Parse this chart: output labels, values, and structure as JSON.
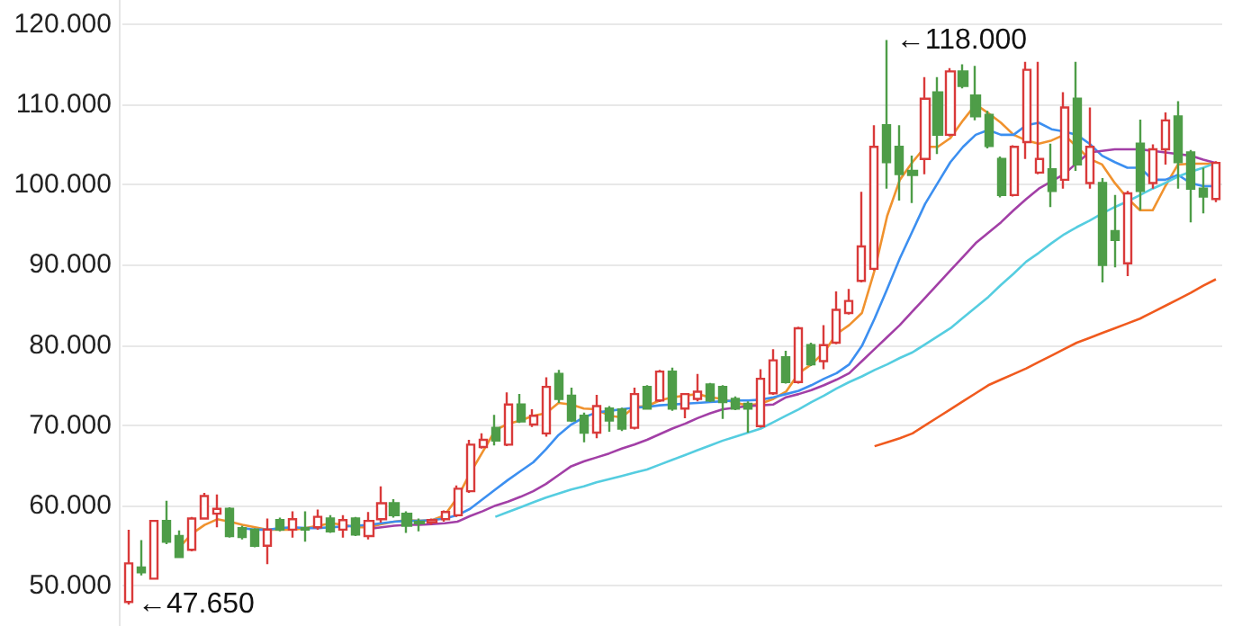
{
  "chart_data": {
    "type": "candlestick",
    "categories": [
      null,
      null,
      null,
      null,
      null,
      null,
      null,
      null,
      null,
      null,
      null,
      null,
      null,
      null,
      null,
      null,
      null,
      null,
      null,
      null,
      null,
      null,
      null,
      null,
      null,
      null,
      null,
      null,
      null,
      null,
      null,
      null,
      null,
      null,
      null,
      null,
      null,
      null,
      null,
      null,
      null,
      null,
      null,
      null,
      null,
      null,
      null,
      null,
      null,
      null,
      null,
      null,
      null,
      null,
      null,
      null,
      null,
      null,
      null,
      null,
      null,
      null,
      null,
      null,
      null,
      null,
      null,
      null,
      null,
      null,
      null,
      null,
      null,
      null,
      null,
      null,
      null,
      null,
      null,
      null,
      null,
      null,
      null,
      null,
      null,
      null,
      null
    ],
    "ohlc": [
      [
        48.0,
        57.0,
        47.65,
        52.8
      ],
      [
        52.3,
        55.7,
        51.3,
        51.7
      ],
      [
        50.9,
        58.2,
        50.8,
        58.1
      ],
      [
        58.1,
        60.6,
        55.2,
        55.5
      ],
      [
        56.2,
        56.9,
        53.5,
        53.6
      ],
      [
        54.5,
        58.6,
        54.3,
        58.4
      ],
      [
        58.4,
        61.6,
        58.3,
        61.2
      ],
      [
        59.0,
        61.4,
        57.3,
        59.6
      ],
      [
        59.6,
        59.8,
        56.0,
        56.2
      ],
      [
        57.2,
        57.5,
        55.8,
        56.1
      ],
      [
        57.0,
        57.2,
        54.8,
        55.0
      ],
      [
        55.0,
        58.4,
        52.7,
        57.0
      ],
      [
        58.2,
        58.5,
        56.8,
        57.0
      ],
      [
        57.0,
        59.3,
        56.0,
        58.3
      ],
      [
        57.2,
        59.3,
        55.5,
        57.0
      ],
      [
        57.3,
        59.5,
        57.0,
        58.6
      ],
      [
        58.4,
        58.8,
        56.6,
        56.8
      ],
      [
        57.0,
        58.8,
        56.0,
        58.2
      ],
      [
        58.4,
        58.6,
        56.2,
        56.4
      ],
      [
        56.2,
        59.2,
        55.8,
        58.1
      ],
      [
        58.3,
        62.4,
        57.9,
        60.3
      ],
      [
        60.3,
        60.8,
        58.5,
        58.8
      ],
      [
        59.0,
        59.3,
        56.6,
        57.5
      ],
      [
        58.0,
        58.4,
        56.8,
        57.8
      ],
      [
        57.9,
        58.4,
        57.6,
        58.2
      ],
      [
        58.3,
        59.4,
        58.0,
        59.2
      ],
      [
        58.8,
        62.5,
        58.6,
        62.1
      ],
      [
        61.8,
        68.2,
        61.6,
        67.6
      ],
      [
        67.3,
        69.0,
        67.1,
        68.2
      ],
      [
        69.7,
        71.3,
        67.5,
        68.1
      ],
      [
        67.6,
        74.1,
        67.4,
        72.6
      ],
      [
        72.6,
        73.9,
        70.3,
        70.5
      ],
      [
        70.1,
        72.0,
        69.8,
        71.2
      ],
      [
        69.0,
        76.0,
        68.6,
        74.8
      ],
      [
        76.4,
        76.9,
        72.8,
        73.3
      ],
      [
        73.7,
        74.7,
        70.4,
        70.6
      ],
      [
        71.2,
        71.6,
        67.9,
        69.1
      ],
      [
        69.1,
        73.8,
        68.4,
        72.4
      ],
      [
        72.1,
        72.4,
        69.2,
        70.6
      ],
      [
        72.0,
        72.2,
        69.3,
        69.6
      ],
      [
        69.7,
        74.7,
        69.5,
        73.9
      ],
      [
        74.8,
        75.0,
        72.0,
        72.1
      ],
      [
        73.1,
        76.9,
        72.9,
        76.7
      ],
      [
        76.7,
        77.2,
        71.8,
        72.1
      ],
      [
        72.1,
        74.0,
        70.9,
        73.9
      ],
      [
        73.3,
        76.4,
        73.0,
        74.2
      ],
      [
        75.1,
        75.3,
        72.9,
        73.1
      ],
      [
        74.8,
        75.0,
        70.8,
        72.9
      ],
      [
        73.3,
        73.6,
        71.9,
        72.1
      ],
      [
        72.7,
        73.0,
        69.1,
        72.1
      ],
      [
        69.9,
        77.0,
        69.7,
        75.8
      ],
      [
        74.0,
        79.5,
        73.8,
        78.1
      ],
      [
        78.5,
        79.3,
        75.2,
        75.4
      ],
      [
        75.4,
        82.3,
        75.2,
        82.1
      ],
      [
        80.0,
        80.3,
        77.4,
        77.6
      ],
      [
        78.0,
        82.5,
        77.0,
        80.0
      ],
      [
        80.3,
        86.7,
        80.1,
        84.4
      ],
      [
        84.0,
        87.0,
        83.8,
        85.5
      ],
      [
        88.0,
        99.1,
        87.8,
        92.3
      ],
      [
        89.5,
        107.4,
        89.3,
        104.7
      ],
      [
        107.4,
        118.0,
        99.5,
        102.8
      ],
      [
        104.7,
        107.4,
        98.0,
        101.3
      ],
      [
        101.7,
        103.6,
        97.7,
        101.2
      ],
      [
        103.2,
        113.4,
        101.3,
        110.7
      ],
      [
        111.5,
        113.4,
        103.8,
        106.2
      ],
      [
        106.2,
        114.5,
        106.0,
        114.1
      ],
      [
        114.1,
        115.0,
        112.0,
        112.3
      ],
      [
        111.1,
        114.8,
        108.0,
        108.5
      ],
      [
        108.7,
        109.2,
        104.5,
        104.8
      ],
      [
        103.2,
        103.5,
        98.4,
        98.7
      ],
      [
        98.7,
        104.9,
        98.5,
        104.7
      ],
      [
        105.3,
        115.3,
        103.2,
        114.3
      ],
      [
        101.5,
        115.3,
        101.3,
        103.2
      ],
      [
        101.9,
        105.1,
        97.2,
        99.2
      ],
      [
        100.6,
        111.5,
        99.5,
        109.6
      ],
      [
        110.7,
        115.3,
        101.7,
        102.5
      ],
      [
        100.2,
        109.6,
        99.5,
        104.7
      ],
      [
        100.2,
        100.8,
        87.8,
        90.0
      ],
      [
        94.2,
        98.7,
        89.7,
        93.1
      ],
      [
        90.2,
        99.2,
        88.6,
        98.9
      ],
      [
        105.1,
        108.1,
        96.8,
        99.2
      ],
      [
        100.2,
        105.0,
        99.5,
        104.4
      ],
      [
        104.4,
        109.0,
        102.5,
        108.0
      ],
      [
        108.5,
        110.4,
        99.5,
        102.8
      ],
      [
        104.0,
        104.3,
        95.3,
        99.5
      ],
      [
        99.5,
        102.1,
        96.4,
        98.5
      ],
      [
        98.2,
        102.9,
        97.8,
        102.7
      ]
    ],
    "colors": [
      "#d93a3a",
      "#4e9d48",
      "#d93a3a",
      "#4e9d48",
      "#4e9d48",
      "#d93a3a",
      "#d93a3a",
      "#d93a3a",
      "#4e9d48",
      "#4e9d48",
      "#4e9d48",
      "#d93a3a",
      "#4e9d48",
      "#d93a3a",
      "#4e9d48",
      "#d93a3a",
      "#4e9d48",
      "#d93a3a",
      "#4e9d48",
      "#d93a3a",
      "#d93a3a",
      "#4e9d48",
      "#4e9d48",
      "#4e9d48",
      "#d93a3a",
      "#d93a3a",
      "#d93a3a",
      "#d93a3a",
      "#d93a3a",
      "#4e9d48",
      "#d93a3a",
      "#4e9d48",
      "#d93a3a",
      "#d93a3a",
      "#4e9d48",
      "#4e9d48",
      "#4e9d48",
      "#d93a3a",
      "#4e9d48",
      "#4e9d48",
      "#d93a3a",
      "#4e9d48",
      "#d93a3a",
      "#4e9d48",
      "#d93a3a",
      "#d93a3a",
      "#4e9d48",
      "#4e9d48",
      "#4e9d48",
      "#4e9d48",
      "#d93a3a",
      "#d93a3a",
      "#4e9d48",
      "#d93a3a",
      "#4e9d48",
      "#d93a3a",
      "#d93a3a",
      "#d93a3a",
      "#d93a3a",
      "#d93a3a",
      "#4e9d48",
      "#4e9d48",
      "#4e9d48",
      "#d93a3a",
      "#4e9d48",
      "#d93a3a",
      "#4e9d48",
      "#4e9d48",
      "#4e9d48",
      "#4e9d48",
      "#d93a3a",
      "#d93a3a",
      "#d93a3a",
      "#4e9d48",
      "#d93a3a",
      "#4e9d48",
      "#d93a3a",
      "#4e9d48",
      "#4e9d48",
      "#d93a3a",
      "#4e9d48",
      "#d93a3a",
      "#d93a3a",
      "#4e9d48",
      "#4e9d48",
      "#4e9d48",
      "#d93a3a"
    ],
    "series": [
      {
        "type": "line",
        "color": "#f0922e",
        "values": [
          null,
          null,
          null,
          null,
          54.8,
          56.5,
          57.6,
          58.3,
          58.0,
          57.6,
          57.3,
          57.0,
          57.0,
          57.0,
          57.2,
          57.5,
          57.8,
          57.6,
          57.3,
          57.3,
          57.7,
          58.0,
          58.2,
          58.1,
          58.2,
          58.8,
          61.0,
          64.0,
          66.7,
          69.4,
          70.2,
          70.6,
          71.2,
          71.5,
          72.8,
          72.6,
          72.1,
          72.0,
          71.2,
          71.0,
          72.3,
          72.4,
          73.1,
          73.5,
          73.7,
          73.9,
          73.5,
          73.3,
          72.8,
          72.5,
          72.7,
          73.3,
          74.2,
          76.5,
          77.6,
          79.1,
          81.4,
          82.5,
          84.0,
          89.3,
          96.1,
          100.6,
          102.8,
          104.7,
          104.7,
          105.8,
          108.0,
          110.0,
          108.9,
          107.7,
          106.2,
          105.5,
          105.1,
          105.5,
          106.2,
          104.7,
          103.2,
          102.5,
          100.2,
          98.3,
          96.8,
          96.8,
          99.8,
          102.5,
          102.6,
          102.6,
          102.6
        ]
      },
      {
        "type": "line",
        "color": "#3c8ff0",
        "values": [
          null,
          null,
          null,
          null,
          null,
          null,
          null,
          null,
          null,
          57.2,
          57.0,
          57.0,
          57.2,
          57.3,
          57.2,
          57.2,
          57.3,
          57.4,
          57.5,
          57.6,
          57.8,
          58.0,
          58.1,
          58.1,
          58.2,
          58.4,
          58.8,
          59.6,
          60.8,
          62.0,
          63.2,
          64.3,
          65.4,
          67.0,
          68.8,
          70.1,
          71.0,
          71.6,
          71.8,
          72.0,
          72.2,
          72.3,
          72.5,
          72.6,
          72.7,
          72.8,
          72.9,
          73.0,
          73.1,
          73.1,
          73.2,
          73.5,
          73.9,
          74.3,
          75.0,
          75.8,
          76.5,
          77.6,
          79.9,
          83.3,
          87.0,
          90.8,
          94.2,
          97.6,
          100.2,
          102.8,
          104.7,
          106.2,
          106.8,
          106.2,
          106.2,
          107.4,
          107.7,
          106.9,
          106.6,
          106.2,
          105.1,
          103.6,
          102.8,
          102.1,
          102.1,
          100.6,
          100.6,
          101.2,
          100.2,
          99.8,
          99.8
        ]
      },
      {
        "type": "line",
        "color": "#a23fa6",
        "values": [
          null,
          null,
          null,
          null,
          null,
          null,
          null,
          null,
          null,
          null,
          null,
          null,
          null,
          null,
          null,
          null,
          null,
          null,
          null,
          57.1,
          57.3,
          57.5,
          57.6,
          57.6,
          57.7,
          57.8,
          58.0,
          58.7,
          59.3,
          60.0,
          60.5,
          61.1,
          61.8,
          62.7,
          63.8,
          64.9,
          65.5,
          66.0,
          66.5,
          67.1,
          67.6,
          68.2,
          68.9,
          69.6,
          70.2,
          70.9,
          71.5,
          72.0,
          72.2,
          72.4,
          72.5,
          72.6,
          73.5,
          73.9,
          74.4,
          75.0,
          75.7,
          76.5,
          78.0,
          79.5,
          81.0,
          82.5,
          84.2,
          85.9,
          87.6,
          89.3,
          91.0,
          92.7,
          94.0,
          95.3,
          96.8,
          98.2,
          99.5,
          100.4,
          101.3,
          102.7,
          104.0,
          104.2,
          104.4,
          104.4,
          104.4,
          104.2,
          104.0,
          103.8,
          103.6,
          103.1,
          102.7
        ]
      },
      {
        "type": "line",
        "color": "#55cde0",
        "values": [
          null,
          null,
          null,
          null,
          null,
          null,
          null,
          null,
          null,
          null,
          null,
          null,
          null,
          null,
          null,
          null,
          null,
          null,
          null,
          null,
          null,
          null,
          null,
          null,
          null,
          null,
          null,
          null,
          null,
          58.6,
          59.2,
          59.8,
          60.4,
          61.0,
          61.5,
          62.0,
          62.4,
          62.9,
          63.3,
          63.7,
          64.1,
          64.5,
          65.1,
          65.7,
          66.3,
          66.9,
          67.5,
          68.1,
          68.6,
          69.1,
          69.6,
          70.4,
          71.2,
          72.0,
          72.9,
          73.7,
          74.6,
          75.4,
          76.1,
          76.9,
          77.6,
          78.4,
          79.1,
          80.1,
          81.1,
          82.1,
          83.4,
          84.7,
          86.0,
          87.5,
          88.9,
          90.4,
          91.5,
          92.7,
          93.8,
          94.7,
          95.5,
          96.4,
          97.2,
          97.9,
          98.7,
          99.5,
          100.2,
          101.0,
          101.6,
          102.1,
          102.7
        ]
      },
      {
        "type": "line",
        "color": "#f05a1e",
        "values": [
          null,
          null,
          null,
          null,
          null,
          null,
          null,
          null,
          null,
          null,
          null,
          null,
          null,
          null,
          null,
          null,
          null,
          null,
          null,
          null,
          null,
          null,
          null,
          null,
          null,
          null,
          null,
          null,
          null,
          null,
          null,
          null,
          null,
          null,
          null,
          null,
          null,
          null,
          null,
          null,
          null,
          null,
          null,
          null,
          null,
          null,
          null,
          null,
          null,
          null,
          null,
          null,
          null,
          null,
          null,
          null,
          null,
          null,
          null,
          67.4,
          67.9,
          68.4,
          69.0,
          70.0,
          71.0,
          72.0,
          73.0,
          74.0,
          75.0,
          75.7,
          76.4,
          77.1,
          77.9,
          78.7,
          79.5,
          80.3,
          80.9,
          81.5,
          82.1,
          82.7,
          83.3,
          84.1,
          84.9,
          85.7,
          86.5,
          87.4,
          88.2
        ]
      }
    ],
    "annotations": [
      "←118.000",
      "←47.650"
    ],
    "ylim": [
      45,
      123
    ],
    "yticks": [
      {
        "value": 50,
        "label": "50.000"
      },
      {
        "value": 60,
        "label": "60.000"
      },
      {
        "value": 70,
        "label": "70.000"
      },
      {
        "value": 80,
        "label": "80.000"
      },
      {
        "value": 90,
        "label": "90.000"
      },
      {
        "value": 100,
        "label": "100.000"
      },
      {
        "value": 110,
        "label": "110.000"
      },
      {
        "value": 120,
        "label": "120.000"
      }
    ],
    "grid": "y",
    "tick_labels": "y"
  }
}
